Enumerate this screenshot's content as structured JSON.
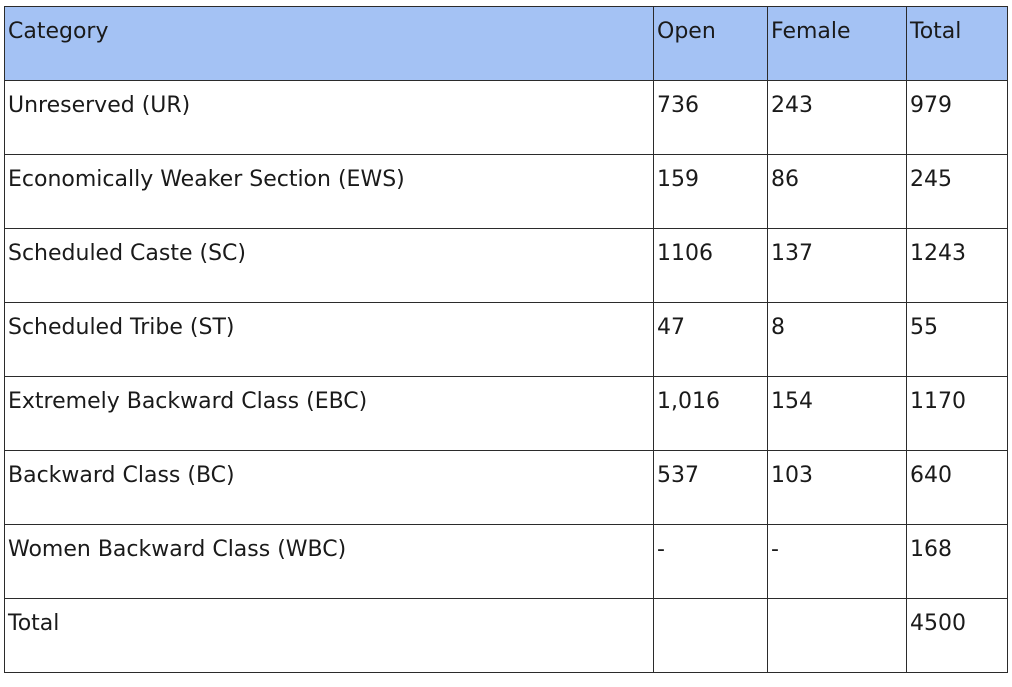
{
  "table": {
    "columns": [
      "Category",
      "Open",
      "Female",
      "Total"
    ],
    "rows": [
      {
        "category": "Unreserved (UR)",
        "open": "736",
        "female": "243",
        "total": "979"
      },
      {
        "category": "Economically Weaker Section (EWS)",
        "open": "159",
        "female": "86",
        "total": "245"
      },
      {
        "category": "Scheduled Caste (SC)",
        "open": "1106",
        "female": "137",
        "total": "1243"
      },
      {
        "category": "Scheduled Tribe (ST)",
        "open": "47",
        "female": "8",
        "total": "55"
      },
      {
        "category": "Extremely Backward Class (EBC)",
        "open": "1,016",
        "female": "154",
        "total": "1170"
      },
      {
        "category": "Backward Class (BC)",
        "open": "537",
        "female": "103",
        "total": "640"
      },
      {
        "category": "Women Backward Class (WBC)",
        "open": "-",
        "female": "-",
        "total": "168"
      },
      {
        "category": "Total",
        "open": "",
        "female": "",
        "total": "4500"
      }
    ]
  },
  "colors": {
    "header_background": "#a4c2f4",
    "border": "#2b2b2b"
  }
}
